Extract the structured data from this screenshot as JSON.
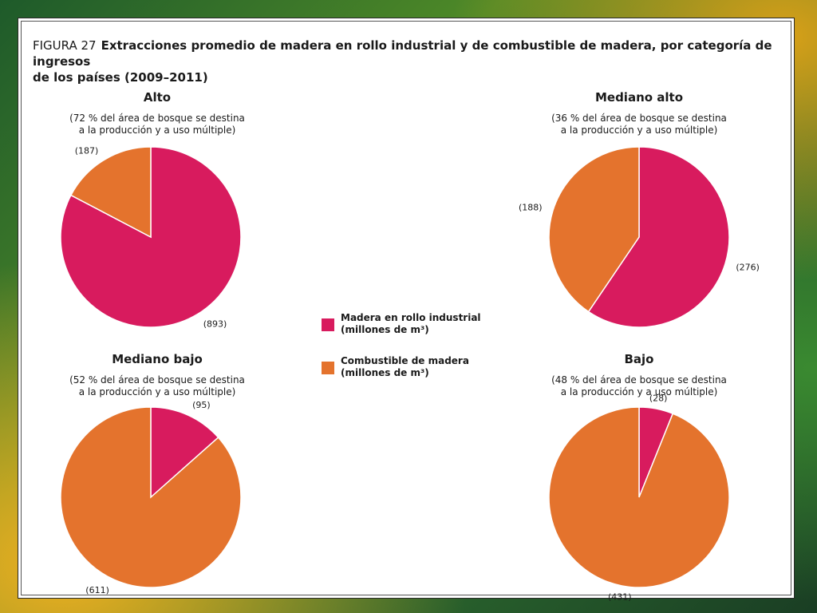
{
  "figure": {
    "label": "FIGURA 27",
    "title_line1": "Extracciones promedio de madera en rollo industrial y de combustible de madera, por categoría de ingresos",
    "title_line2": "de los países (2009–2011)"
  },
  "colors": {
    "industrial": "#d81b5e",
    "fuel": "#e4732d"
  },
  "legend": {
    "industrial": {
      "line1": "Madera en rollo industrial",
      "line2": "(millones de m³)"
    },
    "fuel": {
      "line1": "Combustible de madera",
      "line2": "(millones de m³)"
    }
  },
  "chart_data": [
    {
      "type": "pie",
      "title": "Alto",
      "subtitle_line1": "(72 % del área de bosque  se destina",
      "subtitle_line2": "a la producción y a uso múltiple)",
      "slices": [
        {
          "name": "Madera en rollo industrial",
          "value": 893,
          "label": "(893)"
        },
        {
          "name": "Combustible de madera",
          "value": 187,
          "label": "(187)"
        }
      ]
    },
    {
      "type": "pie",
      "title": "Mediano alto",
      "subtitle_line1": "(36 % del área de bosque se destina",
      "subtitle_line2": "a la producción y a uso múltiple)",
      "slices": [
        {
          "name": "Madera en rollo industrial",
          "value": 276,
          "label": "(276)"
        },
        {
          "name": "Combustible de madera",
          "value": 188,
          "label": "(188)"
        }
      ]
    },
    {
      "type": "pie",
      "title": "Mediano bajo",
      "subtitle_line1": "(52 % del área de bosque se destina",
      "subtitle_line2": "a la producción y a uso múltiple)",
      "slices": [
        {
          "name": "Madera en rollo industrial",
          "value": 95,
          "label": "(95)"
        },
        {
          "name": "Combustible de madera",
          "value": 611,
          "label": "(611)"
        }
      ]
    },
    {
      "type": "pie",
      "title": "Bajo",
      "subtitle_line1": "(48 % del área de bosque se destina",
      "subtitle_line2": "a la producción y a uso múltiple)",
      "slices": [
        {
          "name": "Madera en rollo industrial",
          "value": 28,
          "label": "(28)"
        },
        {
          "name": "Combustible de madera",
          "value": 431,
          "label": "(431)"
        }
      ]
    }
  ]
}
